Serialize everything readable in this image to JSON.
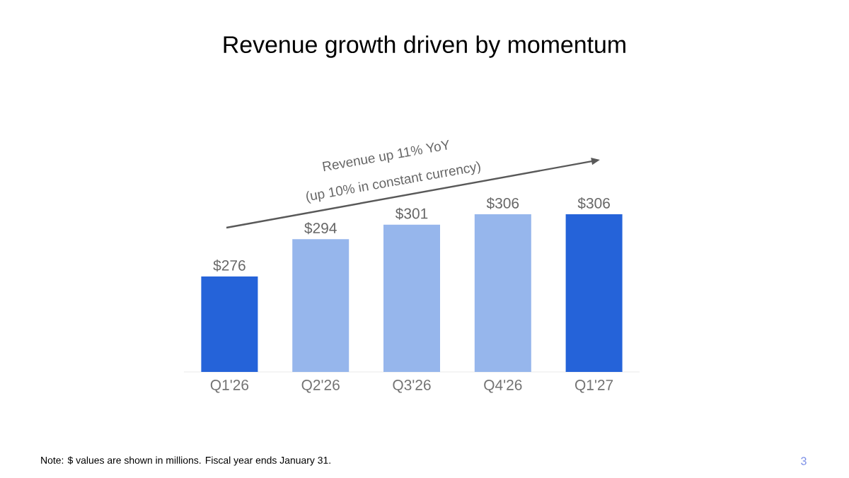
{
  "chart_data": {
    "type": "bar",
    "title": "Revenue growth driven by momentum",
    "categories": [
      "Q1'26",
      "Q2'26",
      "Q3'26",
      "Q4'26",
      "Q1'27"
    ],
    "values": [
      276,
      294,
      301,
      306,
      306
    ],
    "colors": [
      "#2563d9",
      "#96b6ec",
      "#96b6ec",
      "#96b6ec",
      "#2563d9"
    ],
    "value_labels": [
      "$276",
      "$294",
      "$301",
      "$306",
      "$306"
    ],
    "ylim": [
      230,
      306
    ],
    "tick_labels": "x",
    "annotations": [
      "Revenue up 11% YoY",
      "(up 10% in constant currency)",
      "Note: $ values are shown in millions. Fiscal year ends January 31.",
      "3"
    ]
  }
}
